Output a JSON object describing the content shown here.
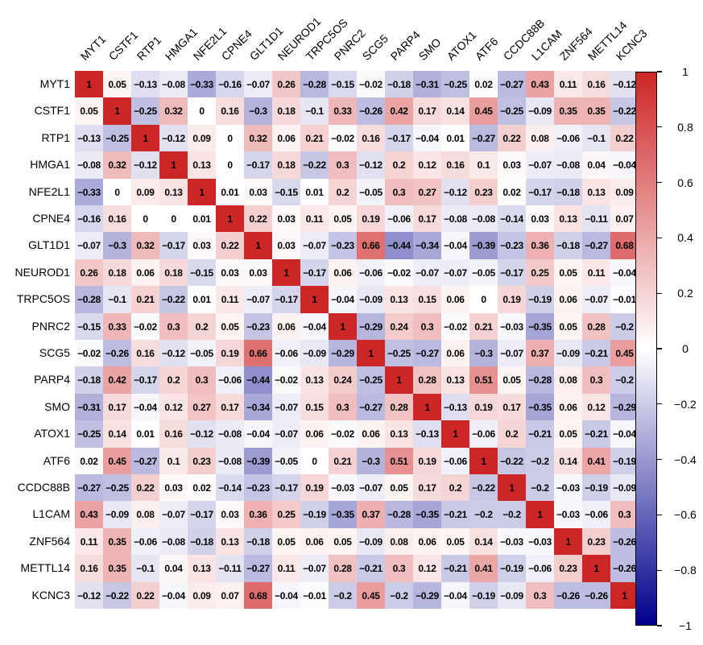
{
  "chart_data": {
    "type": "heatmap",
    "title": "",
    "description": "gene-gene correlation matrix",
    "value_range": [
      -1,
      1
    ],
    "legend_position": "right",
    "grid": false,
    "colors": {
      "positive_extreme": "#CD2626",
      "zero": "#FFFFFF",
      "negative_extreme": "#00008B",
      "cell_text": "#000000"
    },
    "labels": [
      "MYT1",
      "CSTF1",
      "RTP1",
      "HMGA1",
      "NFE2L1",
      "CPNE4",
      "GLT1D1",
      "NEUROD1",
      "TRPC5OS",
      "PNRC2",
      "SCG5",
      "PARP4",
      "SMO",
      "ATOX1",
      "ATF6",
      "CCDC88B",
      "L1CAM",
      "ZNF564",
      "METTL14",
      "KCNC3"
    ],
    "matrix": [
      [
        1,
        0.05,
        -0.13,
        -0.08,
        -0.33,
        -0.16,
        -0.07,
        0.26,
        -0.28,
        -0.15,
        -0.02,
        -0.18,
        -0.31,
        -0.25,
        0.02,
        -0.27,
        0.43,
        0.11,
        0.16,
        -0.12
      ],
      [
        0.05,
        1,
        -0.25,
        0.32,
        0,
        0.16,
        -0.3,
        0.18,
        -0.1,
        0.33,
        -0.26,
        0.42,
        0.17,
        0.14,
        0.45,
        -0.25,
        -0.09,
        0.35,
        0.35,
        -0.22
      ],
      [
        -0.13,
        -0.25,
        1,
        -0.12,
        0.09,
        0,
        0.32,
        0.06,
        0.21,
        -0.02,
        0.16,
        -0.17,
        -0.04,
        0.01,
        -0.27,
        0.22,
        0.08,
        -0.06,
        -0.1,
        0.22
      ],
      [
        -0.08,
        0.32,
        -0.12,
        1,
        0.13,
        0,
        -0.17,
        0.18,
        -0.22,
        0.3,
        -0.12,
        0.2,
        0.12,
        0.16,
        0.1,
        0.03,
        -0.07,
        -0.08,
        0.04,
        -0.04
      ],
      [
        -0.33,
        0,
        0.09,
        0.13,
        1,
        0.01,
        0.03,
        -0.15,
        0.01,
        0.2,
        -0.05,
        0.3,
        0.27,
        -0.12,
        0.23,
        0.02,
        -0.17,
        -0.18,
        0.13,
        0.09
      ],
      [
        -0.16,
        0.16,
        0,
        0,
        0.01,
        1,
        0.22,
        0.03,
        0.11,
        0.05,
        0.19,
        -0.06,
        0.17,
        -0.08,
        -0.08,
        -0.14,
        0.03,
        0.13,
        -0.11,
        0.07
      ],
      [
        -0.07,
        -0.3,
        0.32,
        -0.17,
        0.03,
        0.22,
        1,
        0.03,
        -0.07,
        -0.23,
        0.66,
        -0.44,
        -0.34,
        -0.04,
        -0.39,
        -0.23,
        0.36,
        -0.18,
        -0.27,
        0.68
      ],
      [
        0.26,
        0.18,
        0.06,
        0.18,
        -0.15,
        0.03,
        0.03,
        1,
        -0.17,
        0.06,
        -0.06,
        -0.02,
        -0.07,
        -0.07,
        -0.05,
        -0.17,
        0.25,
        0.05,
        0.11,
        -0.04
      ],
      [
        -0.28,
        -0.1,
        0.21,
        -0.22,
        0.01,
        0.11,
        -0.07,
        -0.17,
        1,
        -0.04,
        -0.09,
        0.13,
        0.15,
        0.06,
        0,
        0.19,
        -0.19,
        0.06,
        -0.07,
        -0.01
      ],
      [
        -0.15,
        0.33,
        -0.02,
        0.3,
        0.2,
        0.05,
        -0.23,
        0.06,
        -0.04,
        1,
        -0.29,
        0.24,
        0.3,
        -0.02,
        0.21,
        -0.03,
        -0.35,
        0.05,
        0.28,
        -0.2
      ],
      [
        -0.02,
        -0.26,
        0.16,
        -0.12,
        -0.05,
        0.19,
        0.66,
        -0.06,
        -0.09,
        -0.29,
        1,
        -0.25,
        -0.27,
        0.06,
        -0.3,
        -0.07,
        0.37,
        -0.09,
        -0.21,
        0.45
      ],
      [
        -0.18,
        0.42,
        -0.17,
        0.2,
        0.3,
        -0.06,
        -0.44,
        -0.02,
        0.13,
        0.24,
        -0.25,
        1,
        0.28,
        0.13,
        0.51,
        0.05,
        -0.28,
        0.08,
        0.3,
        -0.2
      ],
      [
        -0.31,
        0.17,
        -0.04,
        0.12,
        0.27,
        0.17,
        -0.34,
        -0.07,
        0.15,
        0.3,
        -0.27,
        0.28,
        1,
        -0.13,
        0.19,
        0.17,
        -0.35,
        0.06,
        0.12,
        -0.29
      ],
      [
        -0.25,
        0.14,
        0.01,
        0.16,
        -0.12,
        -0.08,
        -0.04,
        -0.07,
        0.06,
        -0.02,
        0.06,
        0.13,
        -0.13,
        1,
        -0.06,
        0.2,
        -0.21,
        0.05,
        -0.21,
        -0.04
      ],
      [
        0.02,
        0.45,
        -0.27,
        0.1,
        0.23,
        -0.08,
        -0.39,
        -0.05,
        0,
        0.21,
        -0.3,
        0.51,
        0.19,
        -0.06,
        1,
        -0.22,
        -0.2,
        0.14,
        0.41,
        -0.19
      ],
      [
        -0.27,
        -0.25,
        0.22,
        0.03,
        0.02,
        -0.14,
        -0.23,
        -0.17,
        0.19,
        -0.03,
        -0.07,
        0.05,
        0.17,
        0.2,
        -0.22,
        1,
        -0.2,
        -0.03,
        -0.19,
        -0.09
      ],
      [
        0.43,
        -0.09,
        0.08,
        -0.07,
        -0.17,
        0.03,
        0.36,
        0.25,
        -0.19,
        -0.35,
        0.37,
        -0.28,
        -0.35,
        -0.21,
        -0.2,
        -0.2,
        1,
        -0.03,
        -0.06,
        0.3
      ],
      [
        0.11,
        0.35,
        -0.06,
        -0.08,
        -0.18,
        0.13,
        -0.18,
        0.05,
        0.06,
        0.05,
        -0.09,
        0.08,
        0.06,
        0.05,
        0.14,
        -0.03,
        -0.03,
        1,
        0.23,
        -0.26
      ],
      [
        0.16,
        0.35,
        -0.1,
        0.04,
        0.13,
        -0.11,
        -0.27,
        0.11,
        -0.07,
        0.28,
        -0.21,
        0.3,
        0.12,
        -0.21,
        0.41,
        -0.19,
        -0.06,
        0.23,
        1,
        -0.26
      ],
      [
        -0.12,
        -0.22,
        0.22,
        -0.04,
        0.09,
        0.07,
        0.68,
        -0.04,
        -0.01,
        -0.2,
        0.45,
        -0.2,
        -0.29,
        -0.04,
        -0.19,
        -0.09,
        0.3,
        -0.26,
        -0.26,
        1
      ]
    ],
    "colorbar": {
      "ticks": [
        1,
        0.8,
        0.6,
        0.4,
        0.2,
        0,
        -0.2,
        -0.4,
        -0.6,
        -0.8,
        -1
      ],
      "min": -1,
      "max": 1
    }
  }
}
